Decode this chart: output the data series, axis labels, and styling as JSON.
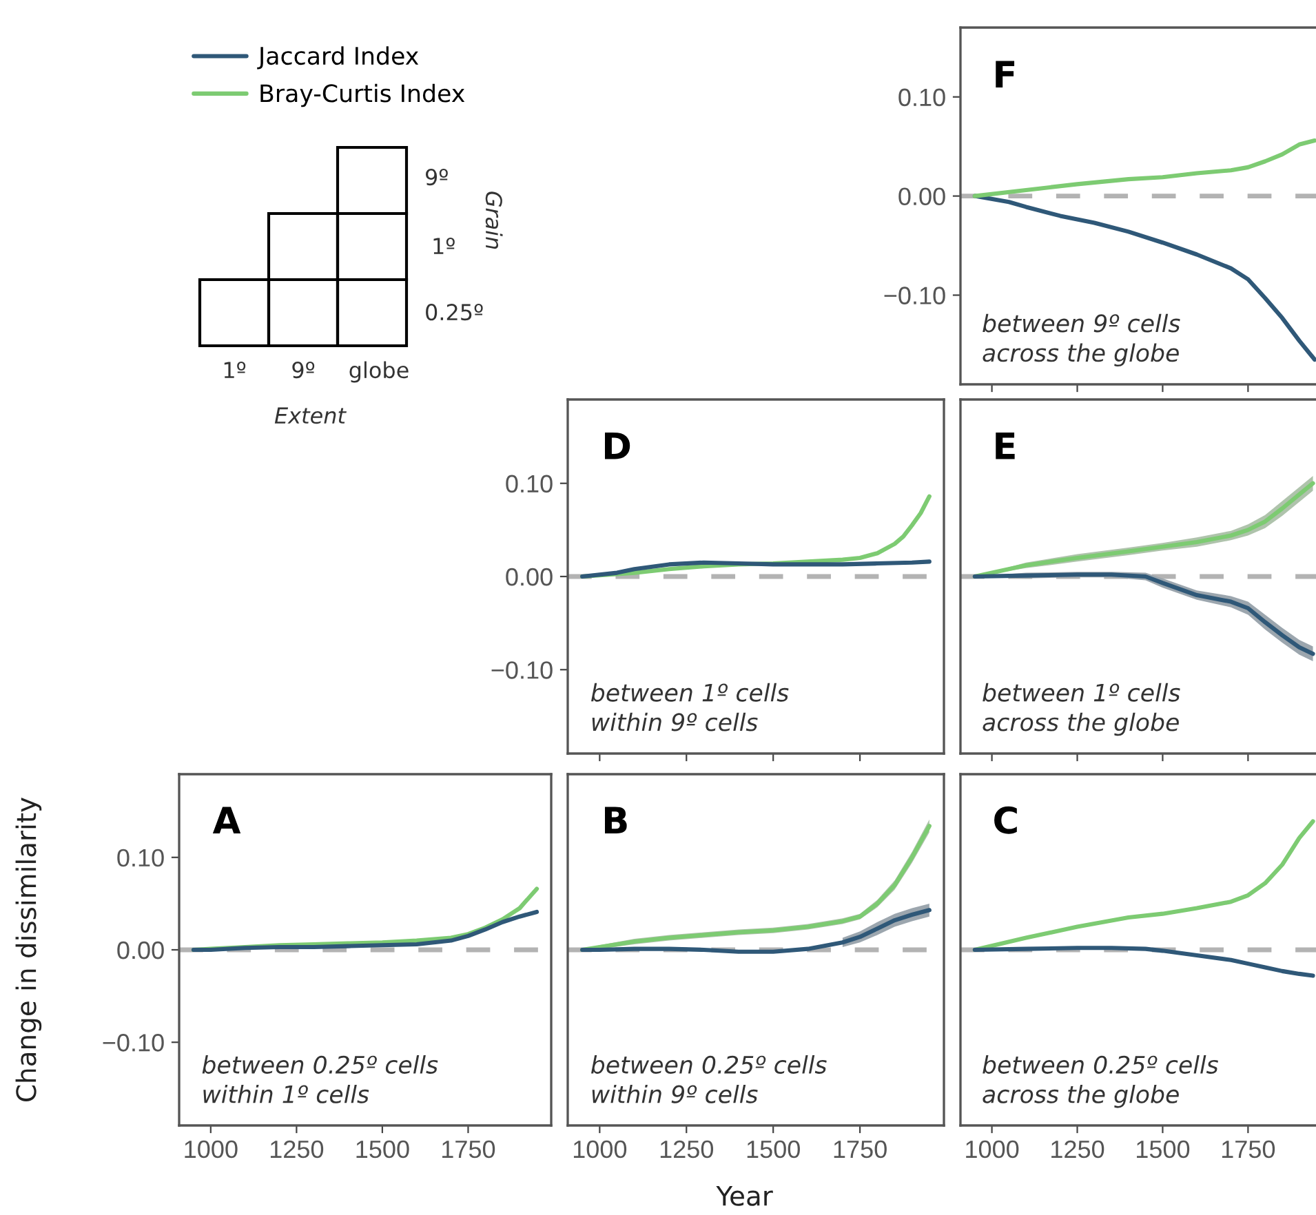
{
  "chart_data": [
    {
      "type": "other",
      "annotations": [
        "9º",
        "1º",
        "0.25º",
        "Grain",
        "1º",
        "9º",
        "globe",
        "Extent"
      ]
    },
    {
      "type": "line",
      "title": "F",
      "annotations": [
        "between 9º cells\nacross the globe"
      ],
      "legend": "top left",
      "tick_labels": "y",
      "xlim": [
        908,
        1949
      ],
      "ylim": [
        -0.19,
        0.17
      ],
      "xticks": [
        {
          "value": 1000,
          "label": null
        },
        {
          "value": 1250,
          "label": null
        },
        {
          "value": 1500,
          "label": null
        },
        {
          "value": 1750,
          "label": null
        }
      ],
      "yticks": [
        {
          "value": -0.1,
          "label": "−0.10"
        },
        {
          "value": 0,
          "label": "0.00"
        },
        {
          "value": 0.1,
          "label": "0.10"
        }
      ],
      "ref_lines": [
        {
          "axis": "y",
          "value": 0,
          "color": "#b3b3b3",
          "line_style": "dashed"
        }
      ],
      "series": [
        {
          "name": "Jaccard Index",
          "color": "#2f5878",
          "x": [
            950,
            1050,
            1100,
            1200,
            1300,
            1400,
            1500,
            1600,
            1700,
            1750,
            1800,
            1850,
            1900,
            1945
          ],
          "values": [
            0,
            -0.006,
            -0.011,
            -0.02,
            -0.027,
            -0.036,
            -0.047,
            -0.059,
            -0.073,
            -0.084,
            -0.103,
            -0.123,
            -0.146,
            -0.165
          ]
        },
        {
          "name": "Bray-Curtis Index",
          "color": "#7dcb72",
          "x": [
            950,
            1100,
            1250,
            1400,
            1500,
            1600,
            1700,
            1750,
            1800,
            1850,
            1900,
            1945
          ],
          "values": [
            0,
            0.006,
            0.012,
            0.017,
            0.019,
            0.023,
            0.026,
            0.029,
            0.035,
            0.042,
            0.052,
            0.056
          ]
        }
      ]
    },
    {
      "type": "line",
      "title": "D",
      "annotations": [
        "between 1º cells\nwithin 9º cells"
      ],
      "tick_labels": "y",
      "xlim": [
        908,
        1992
      ],
      "ylim": [
        -0.19,
        0.19
      ],
      "xticks": [
        {
          "value": 1000,
          "label": null
        },
        {
          "value": 1250,
          "label": null
        },
        {
          "value": 1500,
          "label": null
        },
        {
          "value": 1750,
          "label": null
        }
      ],
      "yticks": [
        {
          "value": -0.1,
          "label": "−0.10"
        },
        {
          "value": 0,
          "label": "0.00"
        },
        {
          "value": 0.1,
          "label": "0.10"
        }
      ],
      "ref_lines": [
        {
          "axis": "y",
          "value": 0,
          "color": "#b3b3b3",
          "line_style": "dashed"
        }
      ],
      "series": [
        {
          "color": "#7dcb72",
          "x": [
            950,
            1100,
            1200,
            1300,
            1400,
            1500,
            1600,
            1700,
            1750,
            1800,
            1850,
            1875,
            1900,
            1925,
            1950
          ],
          "values": [
            0,
            0.004,
            0.008,
            0.011,
            0.013,
            0.014,
            0.016,
            0.018,
            0.02,
            0.025,
            0.035,
            0.043,
            0.055,
            0.068,
            0.086
          ]
        },
        {
          "color": "#2f5878",
          "x": [
            950,
            1050,
            1100,
            1200,
            1300,
            1400,
            1500,
            1600,
            1700,
            1800,
            1900,
            1950
          ],
          "values": [
            0,
            0.004,
            0.008,
            0.013,
            0.015,
            0.014,
            0.013,
            0.013,
            0.013,
            0.014,
            0.015,
            0.016
          ]
        }
      ]
    },
    {
      "type": "line",
      "title": "E",
      "annotations": [
        "between 1º cells\nacross the globe"
      ],
      "tick_labels": false,
      "xlim": [
        908,
        1949
      ],
      "ylim": [
        -0.19,
        0.19
      ],
      "xticks": [
        {
          "value": 1000,
          "label": null
        },
        {
          "value": 1250,
          "label": null
        },
        {
          "value": 1500,
          "label": null
        },
        {
          "value": 1750,
          "label": null
        }
      ],
      "ref_lines": [
        {
          "axis": "y",
          "value": 0,
          "color": "#b3b3b3",
          "line_style": "dashed"
        }
      ],
      "series": [
        {
          "color": "#7dcb72",
          "x": [
            950,
            1100,
            1250,
            1400,
            1500,
            1600,
            1700,
            1750,
            1800,
            1850,
            1900,
            1940
          ],
          "values": [
            0,
            0.012,
            0.02,
            0.027,
            0.032,
            0.037,
            0.044,
            0.05,
            0.059,
            0.073,
            0.088,
            0.1
          ],
          "lower": [
            0,
            0.009,
            0.016,
            0.023,
            0.028,
            0.032,
            0.039,
            0.044,
            0.052,
            0.065,
            0.08,
            0.092
          ],
          "upper": [
            0,
            0.015,
            0.024,
            0.031,
            0.036,
            0.042,
            0.049,
            0.056,
            0.066,
            0.081,
            0.096,
            0.108
          ]
        },
        {
          "color": "#2f5878",
          "x": [
            950,
            1100,
            1250,
            1350,
            1450,
            1500,
            1600,
            1700,
            1750,
            1800,
            1850,
            1900,
            1940
          ],
          "values": [
            0,
            0.001,
            0.002,
            0.002,
            0,
            -0.007,
            -0.02,
            -0.027,
            -0.034,
            -0.049,
            -0.063,
            -0.076,
            -0.083
          ],
          "lower": [
            0,
            -0.002,
            -0.001,
            -0.001,
            -0.004,
            -0.012,
            -0.025,
            -0.033,
            -0.041,
            -0.057,
            -0.071,
            -0.084,
            -0.091
          ],
          "upper": [
            0,
            0.004,
            0.005,
            0.005,
            0.004,
            -0.002,
            -0.015,
            -0.021,
            -0.027,
            -0.041,
            -0.055,
            -0.068,
            -0.075
          ]
        }
      ]
    },
    {
      "type": "line",
      "title": "A",
      "annotations": [
        "between 0.25º cells\nwithin 1º cells"
      ],
      "ylabel": "Change in dissimilarity",
      "xlim": [
        908,
        1992
      ],
      "ylim": [
        -0.19,
        0.19
      ],
      "xticks": [
        1000,
        1250,
        1500,
        1750
      ],
      "yticks": [
        {
          "value": -0.1,
          "label": "−0.10"
        },
        {
          "value": 0,
          "label": "0.00"
        },
        {
          "value": 0.1,
          "label": "0.10"
        }
      ],
      "ref_lines": [
        {
          "axis": "y",
          "value": 0,
          "color": "#b3b3b3",
          "line_style": "dashed"
        }
      ],
      "series": [
        {
          "color": "#7dcb72",
          "x": [
            950,
            1000,
            1100,
            1200,
            1300,
            1400,
            1500,
            1600,
            1700,
            1750,
            1800,
            1850,
            1900,
            1950
          ],
          "values": [
            0,
            0.001,
            0.003,
            0.005,
            0.006,
            0.007,
            0.008,
            0.01,
            0.013,
            0.017,
            0.024,
            0.033,
            0.045,
            0.066
          ]
        },
        {
          "color": "#2f5878",
          "x": [
            950,
            1000,
            1100,
            1200,
            1300,
            1400,
            1500,
            1600,
            1700,
            1750,
            1800,
            1850,
            1900,
            1950
          ],
          "values": [
            0,
            0,
            0.002,
            0.003,
            0.003,
            0.004,
            0.005,
            0.006,
            0.01,
            0.015,
            0.022,
            0.03,
            0.036,
            0.041
          ]
        }
      ]
    },
    {
      "type": "line",
      "title": "B",
      "annotations": [
        "between 0.25º cells\nwithin 9º cells"
      ],
      "xlabel": "Year",
      "tick_labels": "x",
      "xlim": [
        908,
        1992
      ],
      "ylim": [
        -0.19,
        0.19
      ],
      "xticks": [
        1000,
        1250,
        1500,
        1750
      ],
      "ref_lines": [
        {
          "axis": "y",
          "value": 0,
          "color": "#b3b3b3",
          "line_style": "dashed"
        }
      ],
      "series": [
        {
          "color": "#7dcb72",
          "x": [
            950,
            1000,
            1100,
            1200,
            1300,
            1400,
            1500,
            1600,
            1700,
            1750,
            1800,
            1850,
            1900,
            1950
          ],
          "values": [
            0,
            0.003,
            0.009,
            0.013,
            0.016,
            0.019,
            0.021,
            0.025,
            0.031,
            0.036,
            0.05,
            0.07,
            0.1,
            0.134
          ],
          "lower": [
            0,
            0.001,
            0.006,
            0.01,
            0.013,
            0.016,
            0.018,
            0.022,
            0.028,
            0.033,
            0.046,
            0.065,
            0.094,
            0.127
          ],
          "upper": [
            0,
            0.005,
            0.012,
            0.016,
            0.019,
            0.022,
            0.024,
            0.028,
            0.034,
            0.039,
            0.054,
            0.075,
            0.106,
            0.141
          ]
        },
        {
          "color": "#2f5878",
          "x": [
            950,
            1000,
            1100,
            1200,
            1300,
            1400,
            1500,
            1600,
            1700,
            1750,
            1800,
            1850,
            1900,
            1950
          ],
          "values": [
            0,
            0,
            0.001,
            0.001,
            0,
            -0.002,
            -0.002,
            0.001,
            0.008,
            0.014,
            0.023,
            0.032,
            0.038,
            0.043
          ],
          "lower": [
            null,
            null,
            null,
            null,
            null,
            null,
            null,
            null,
            0.003,
            0.008,
            0.016,
            0.025,
            0.031,
            0.036
          ],
          "upper": [
            null,
            null,
            null,
            null,
            null,
            null,
            null,
            null,
            0.013,
            0.02,
            0.03,
            0.039,
            0.045,
            0.05
          ]
        }
      ]
    },
    {
      "type": "line",
      "title": "C",
      "annotations": [
        "between 0.25º cells\nacross the globe"
      ],
      "tick_labels": "x",
      "xlim": [
        908,
        1949
      ],
      "ylim": [
        -0.19,
        0.19
      ],
      "xticks": [
        1000,
        1250,
        1500,
        1750
      ],
      "ref_lines": [
        {
          "axis": "y",
          "value": 0,
          "color": "#b3b3b3",
          "line_style": "dashed"
        }
      ],
      "series": [
        {
          "color": "#7dcb72",
          "x": [
            950,
            1100,
            1250,
            1400,
            1500,
            1600,
            1700,
            1750,
            1800,
            1850,
            1900,
            1940
          ],
          "values": [
            0,
            0.013,
            0.025,
            0.035,
            0.039,
            0.045,
            0.052,
            0.059,
            0.072,
            0.092,
            0.121,
            0.139
          ]
        },
        {
          "color": "#2f5878",
          "x": [
            950,
            1100,
            1250,
            1350,
            1450,
            1500,
            1600,
            1700,
            1750,
            1800,
            1850,
            1900,
            1940
          ],
          "values": [
            0,
            0.001,
            0.002,
            0.002,
            0.001,
            -0.001,
            -0.006,
            -0.011,
            -0.015,
            -0.019,
            -0.023,
            -0.026,
            -0.028
          ]
        }
      ]
    }
  ]
}
